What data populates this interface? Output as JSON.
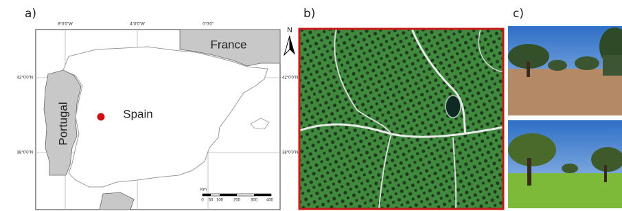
{
  "panels": {
    "a": "a)",
    "b": "b)",
    "c": "c)"
  },
  "map": {
    "countries": {
      "france": "France",
      "spain": "Spain",
      "portugal": "Portugal"
    },
    "north": "N",
    "lon_labels": [
      "8°0'0\"W",
      "4°0'0\"W",
      "0°0'0\""
    ],
    "lat_labels_left": [
      "42°0'0\"N",
      "38°0'0\"N"
    ],
    "lat_labels_right": [
      "42°0'0\"N",
      "38°0'0\"N"
    ],
    "scale_unit": "Km",
    "scale_ticks": [
      "0",
      "50",
      "100",
      "200",
      "300",
      "400"
    ]
  }
}
